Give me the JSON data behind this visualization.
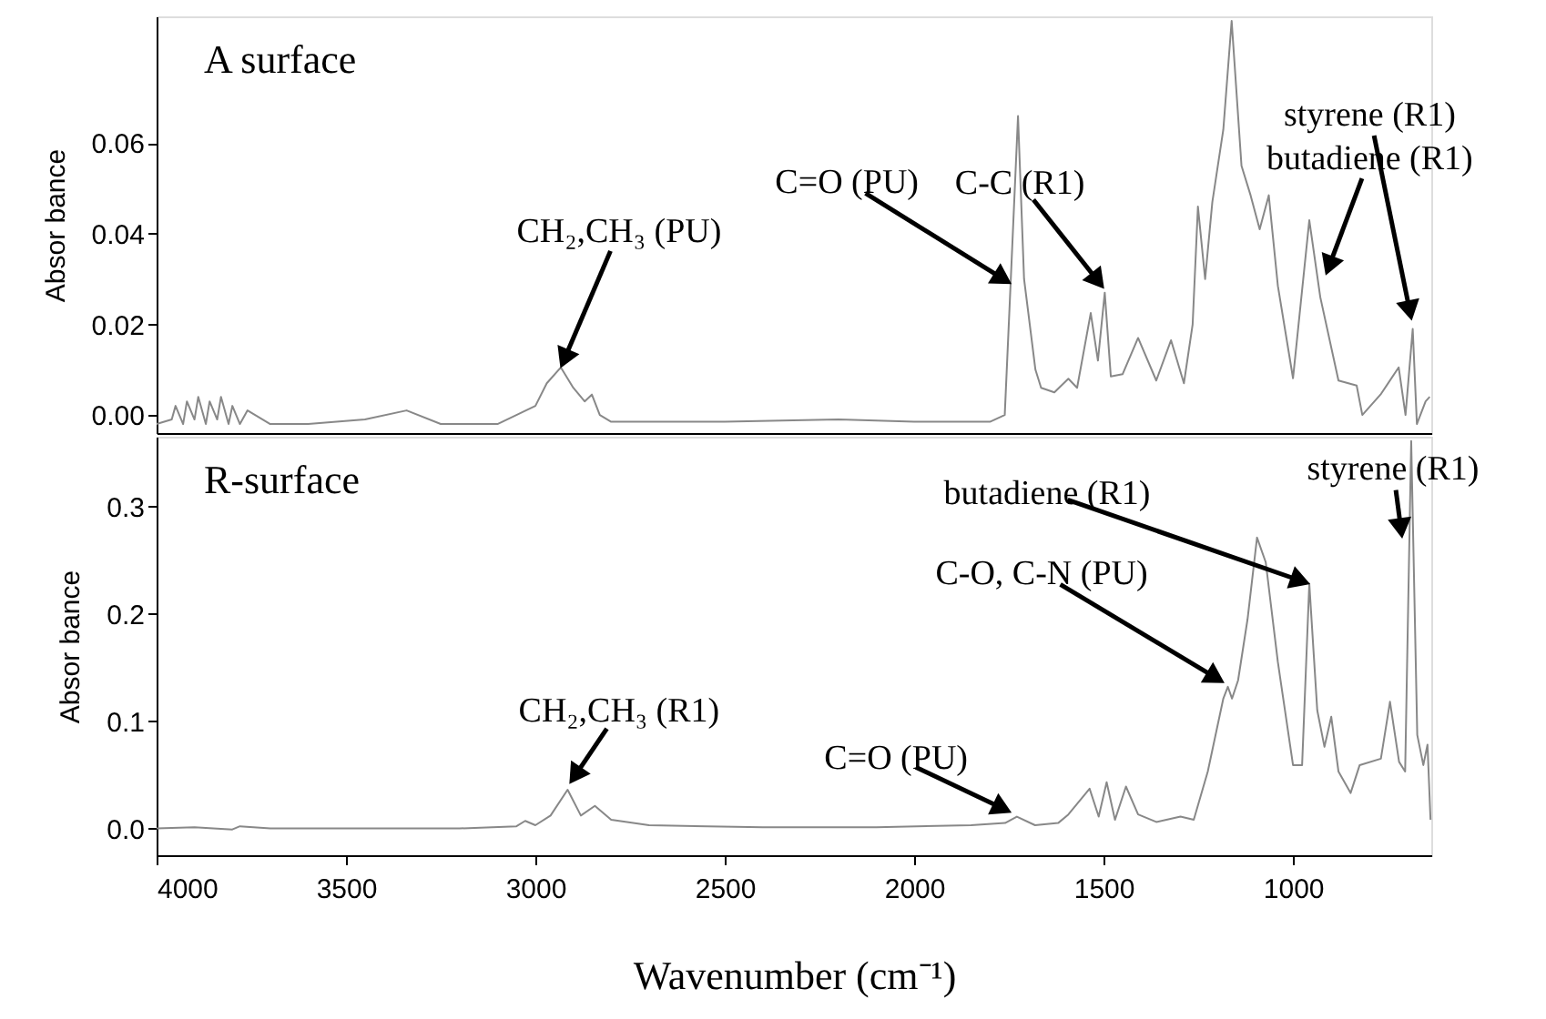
{
  "chart_data": [
    {
      "type": "line",
      "ylabel": "Absor bance",
      "xlim": [
        4000,
        635
      ],
      "ylim": [
        -0.004,
        0.088
      ],
      "yticks": [
        {
          "value": 0,
          "label": "0.00"
        },
        0.02,
        0.04,
        0.06
      ],
      "tick_labels": "y",
      "grid": false,
      "marker": "none",
      "line_style": "solid",
      "series": [
        {
          "color": "#888888",
          "x": [
            4000,
            3960,
            3950,
            3930,
            3920,
            3900,
            3890,
            3870,
            3860,
            3840,
            3830,
            3810,
            3800,
            3780,
            3760,
            3700,
            3600,
            3450,
            3340,
            3250,
            3100,
            3050,
            3000,
            2970,
            2933,
            2900,
            2870,
            2851,
            2830,
            2800,
            2700,
            2500,
            2200,
            2000,
            1800,
            1761,
            1745,
            1726,
            1710,
            1680,
            1665,
            1630,
            1593,
            1570,
            1534,
            1515,
            1497,
            1481,
            1450,
            1409,
            1361,
            1322,
            1288,
            1265,
            1251,
            1232,
            1213,
            1184,
            1162,
            1136,
            1112,
            1088,
            1064,
            1040,
            1000,
            957,
            928,
            880,
            832,
            817,
            769,
            721,
            703,
            684,
            673,
            650,
            639
          ],
          "values": [
            -0.002,
            -0.001,
            0.002,
            -0.002,
            0.003,
            -0.001,
            0.004,
            -0.002,
            0.003,
            -0.001,
            0.004,
            -0.002,
            0.002,
            -0.002,
            0.001,
            -0.002,
            -0.002,
            -0.001,
            0.001,
            -0.002,
            -0.002,
            0.0,
            0.002,
            0.007,
            0.0105,
            0.006,
            0.003,
            0.0045,
            0.0,
            -0.0015,
            -0.0015,
            -0.0015,
            -0.001,
            -0.0015,
            -0.0015,
            0.0,
            0.03,
            0.066,
            0.03,
            0.01,
            0.006,
            0.005,
            0.008,
            0.006,
            0.0225,
            0.012,
            0.027,
            0.0085,
            0.009,
            0.017,
            0.0076,
            0.0165,
            0.007,
            0.02,
            0.046,
            0.03,
            0.047,
            0.063,
            0.087,
            0.055,
            0.0485,
            0.041,
            0.0485,
            0.0285,
            0.0081,
            0.043,
            0.026,
            0.0076,
            0.0065,
            0.0,
            0.0045,
            0.0105,
            0.0,
            0.019,
            -0.002,
            0.003,
            0.004
          ]
        }
      ],
      "annotations": [
        "A surface",
        {
          "text": "CH₂,CH₃ (PU)",
          "x": 2933,
          "y": 0.0105
        },
        {
          "text": "C=O (PU)",
          "x": 1745,
          "y": 0.029
        },
        {
          "text": "C-C (R1)",
          "x": 1500,
          "y": 0.028
        },
        {
          "text": "butadiene (R1)",
          "x": 913,
          "y": 0.031
        },
        {
          "text": "styrene (R1)",
          "x": 687,
          "y": 0.021
        }
      ]
    },
    {
      "type": "line",
      "ylabel": "Absor bance",
      "xlabel": "Wavenumber (cm⁻¹)",
      "xlim": [
        4000,
        635
      ],
      "ylim": [
        -0.025,
        0.365
      ],
      "xticks": [
        4000,
        3500,
        3000,
        2500,
        2000,
        1500,
        1000
      ],
      "yticks": [
        {
          "value": 0,
          "label": "0.0"
        },
        0.1,
        0.2,
        0.3
      ],
      "grid": false,
      "marker": "none",
      "line_style": "solid",
      "series": [
        {
          "color": "#888888",
          "x": [
            4000,
            3900,
            3800,
            3780,
            3700,
            3500,
            3200,
            3050,
            3027,
            3000,
            2960,
            2915,
            2880,
            2843,
            2800,
            2700,
            2400,
            2100,
            1850,
            1760,
            1729,
            1681,
            1620,
            1593,
            1537,
            1513,
            1492,
            1470,
            1441,
            1409,
            1361,
            1297,
            1262,
            1225,
            1184,
            1172,
            1161,
            1145,
            1120,
            1095,
            1072,
            1040,
            1000,
            976,
            957,
            936,
            917,
            899,
            880,
            848,
            824,
            768,
            744,
            720,
            704,
            688,
            672,
            656,
            645,
            637
          ],
          "values": [
            0.0,
            0.001,
            -0.001,
            0.002,
            0.0,
            0.0,
            0.0,
            0.002,
            0.007,
            0.003,
            0.012,
            0.036,
            0.012,
            0.021,
            0.008,
            0.003,
            0.001,
            0.001,
            0.003,
            0.005,
            0.011,
            0.003,
            0.005,
            0.013,
            0.037,
            0.011,
            0.043,
            0.008,
            0.039,
            0.013,
            0.006,
            0.011,
            0.008,
            0.053,
            0.121,
            0.132,
            0.121,
            0.138,
            0.195,
            0.271,
            0.248,
            0.155,
            0.059,
            0.059,
            0.228,
            0.11,
            0.076,
            0.104,
            0.053,
            0.033,
            0.059,
            0.065,
            0.118,
            0.062,
            0.053,
            0.361,
            0.087,
            0.059,
            0.078,
            0.008
          ]
        }
      ],
      "annotations": [
        "R-surface",
        {
          "text": "CH₂,CH₃ (R1)",
          "x": 2909,
          "y": 0.042
        },
        {
          "text": "C=O (PU)",
          "x": 1745,
          "y": 0.015
        },
        {
          "text": "C-O, C-N (PU)",
          "x": 1183,
          "y": 0.136
        },
        {
          "text": "butadiene (R1)",
          "x": 957,
          "y": 0.228
        },
        {
          "text": "styrene (R1)",
          "x": 712,
          "y": 0.271
        }
      ]
    }
  ]
}
